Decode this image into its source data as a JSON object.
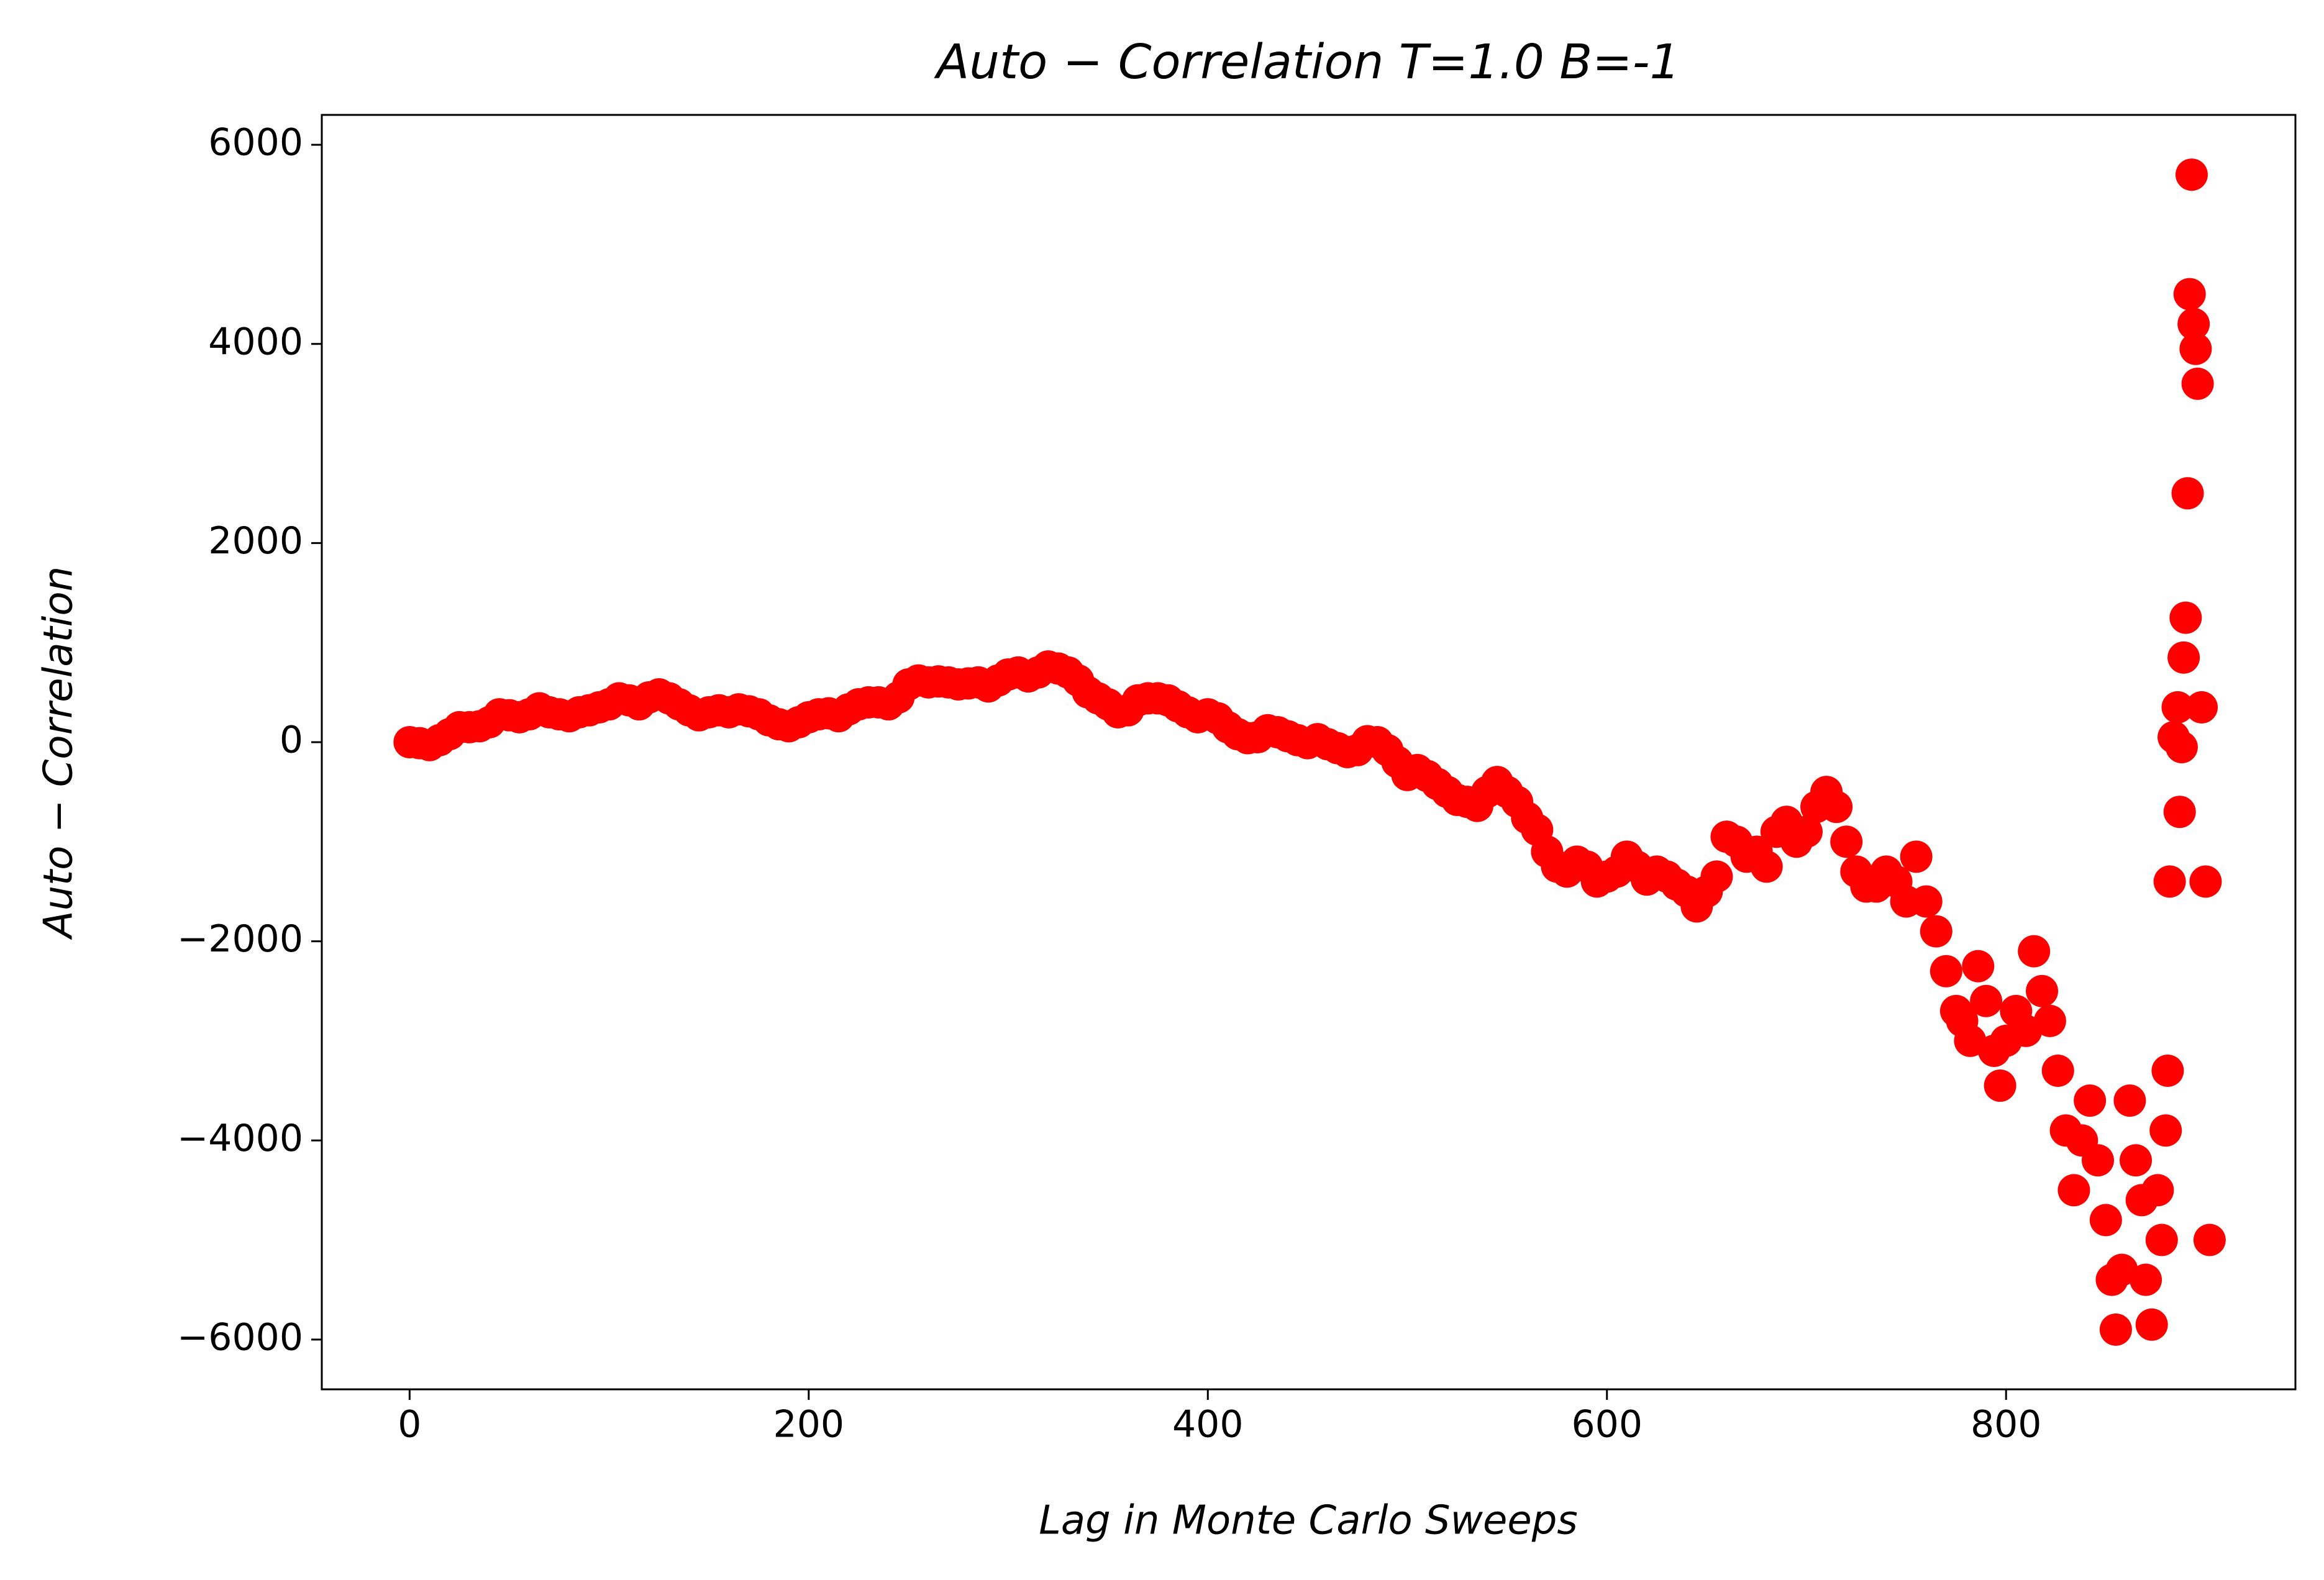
{
  "chart_data": {
    "type": "scatter",
    "title": "Auto − Correlation T=1.0 B=-1",
    "x_label": "Lag in Monte Carlo Sweeps",
    "y_label": "Auto − Correlation",
    "color": "#ff0000",
    "xlim": [
      -44,
      945
    ],
    "ylim": [
      -6500,
      6300
    ],
    "xticks": [
      0,
      200,
      400,
      600,
      800
    ],
    "yticks": [
      {
        "value": -6000,
        "label": "−6000"
      },
      {
        "value": -4000,
        "label": "−4000"
      },
      {
        "value": -2000,
        "label": "−2000"
      },
      0,
      2000,
      4000,
      6000
    ],
    "x": [
      0,
      5,
      10,
      15,
      20,
      25,
      30,
      35,
      40,
      45,
      50,
      55,
      60,
      65,
      70,
      75,
      80,
      85,
      90,
      95,
      100,
      105,
      110,
      115,
      120,
      125,
      130,
      135,
      140,
      145,
      150,
      155,
      160,
      165,
      170,
      175,
      180,
      185,
      190,
      195,
      200,
      205,
      210,
      215,
      220,
      225,
      230,
      235,
      240,
      245,
      250,
      255,
      260,
      265,
      270,
      275,
      280,
      285,
      290,
      295,
      300,
      305,
      310,
      315,
      320,
      325,
      330,
      335,
      340,
      345,
      350,
      355,
      360,
      365,
      370,
      375,
      380,
      385,
      390,
      395,
      400,
      405,
      410,
      415,
      420,
      425,
      430,
      435,
      440,
      445,
      450,
      455,
      460,
      465,
      470,
      475,
      480,
      485,
      490,
      495,
      500,
      505,
      510,
      515,
      520,
      525,
      530,
      535,
      540,
      545,
      550,
      555,
      560,
      565,
      570,
      575,
      580,
      585,
      590,
      595,
      600,
      605,
      610,
      615,
      620,
      625,
      630,
      635,
      640,
      645,
      650,
      655,
      660,
      665,
      670,
      675,
      680,
      685,
      690,
      695,
      700,
      705,
      710,
      715,
      720,
      725,
      730,
      735,
      740,
      745,
      750,
      755,
      760,
      765,
      770,
      775,
      778,
      782,
      786,
      790,
      794,
      797,
      800,
      805,
      810,
      814,
      818,
      822,
      826,
      830,
      834,
      838,
      842,
      846,
      850,
      853,
      855,
      858,
      862,
      865,
      868,
      870,
      873,
      876,
      878,
      880,
      881,
      882,
      884,
      886,
      887,
      888,
      889,
      890,
      891,
      892,
      893,
      894,
      895,
      896,
      898,
      900,
      902
    ],
    "values": [
      0,
      -10,
      -30,
      20,
      80,
      150,
      150,
      160,
      200,
      280,
      270,
      250,
      280,
      340,
      300,
      280,
      260,
      300,
      320,
      350,
      380,
      440,
      420,
      380,
      450,
      480,
      440,
      380,
      320,
      270,
      300,
      320,
      300,
      330,
      310,
      280,
      220,
      180,
      160,
      200,
      250,
      280,
      290,
      260,
      330,
      380,
      400,
      400,
      380,
      450,
      580,
      620,
      600,
      610,
      600,
      580,
      590,
      600,
      560,
      620,
      680,
      700,
      660,
      700,
      760,
      740,
      700,
      620,
      500,
      440,
      380,
      300,
      320,
      420,
      440,
      440,
      420,
      360,
      300,
      250,
      280,
      240,
      150,
      80,
      40,
      50,
      120,
      100,
      60,
      20,
      -10,
      30,
      -20,
      -60,
      -100,
      -80,
      10,
      0,
      -80,
      -200,
      -330,
      -280,
      -340,
      -420,
      -500,
      -580,
      -600,
      -640,
      -500,
      -400,
      -500,
      -600,
      -760,
      -880,
      -1100,
      -1250,
      -1300,
      -1200,
      -1250,
      -1400,
      -1350,
      -1300,
      -1150,
      -1250,
      -1380,
      -1300,
      -1350,
      -1430,
      -1500,
      -1650,
      -1500,
      -1350,
      -950,
      -1000,
      -1150,
      -1100,
      -1250,
      -900,
      -800,
      -1000,
      -900,
      -650,
      -500,
      -650,
      -1000,
      -1300,
      -1450,
      -1450,
      -1300,
      -1400,
      -1600,
      -1150,
      -1600,
      -1900,
      -2300,
      -2700,
      -2800,
      -3000,
      -2250,
      -2600,
      -3100,
      -3450,
      -3000,
      -2700,
      -2900,
      -2100,
      -2500,
      -2800,
      -3300,
      -3900,
      -4500,
      -4000,
      -3600,
      -4200,
      -4800,
      -5400,
      -5900,
      -5300,
      -3600,
      -4200,
      -4600,
      -5400,
      -5850,
      -4500,
      -5000,
      -3900,
      -3300,
      -1400,
      50,
      350,
      -700,
      -50,
      850,
      1250,
      2500,
      4500,
      5700,
      4200,
      3950,
      3600,
      350,
      -1400,
      -5000
    ]
  }
}
